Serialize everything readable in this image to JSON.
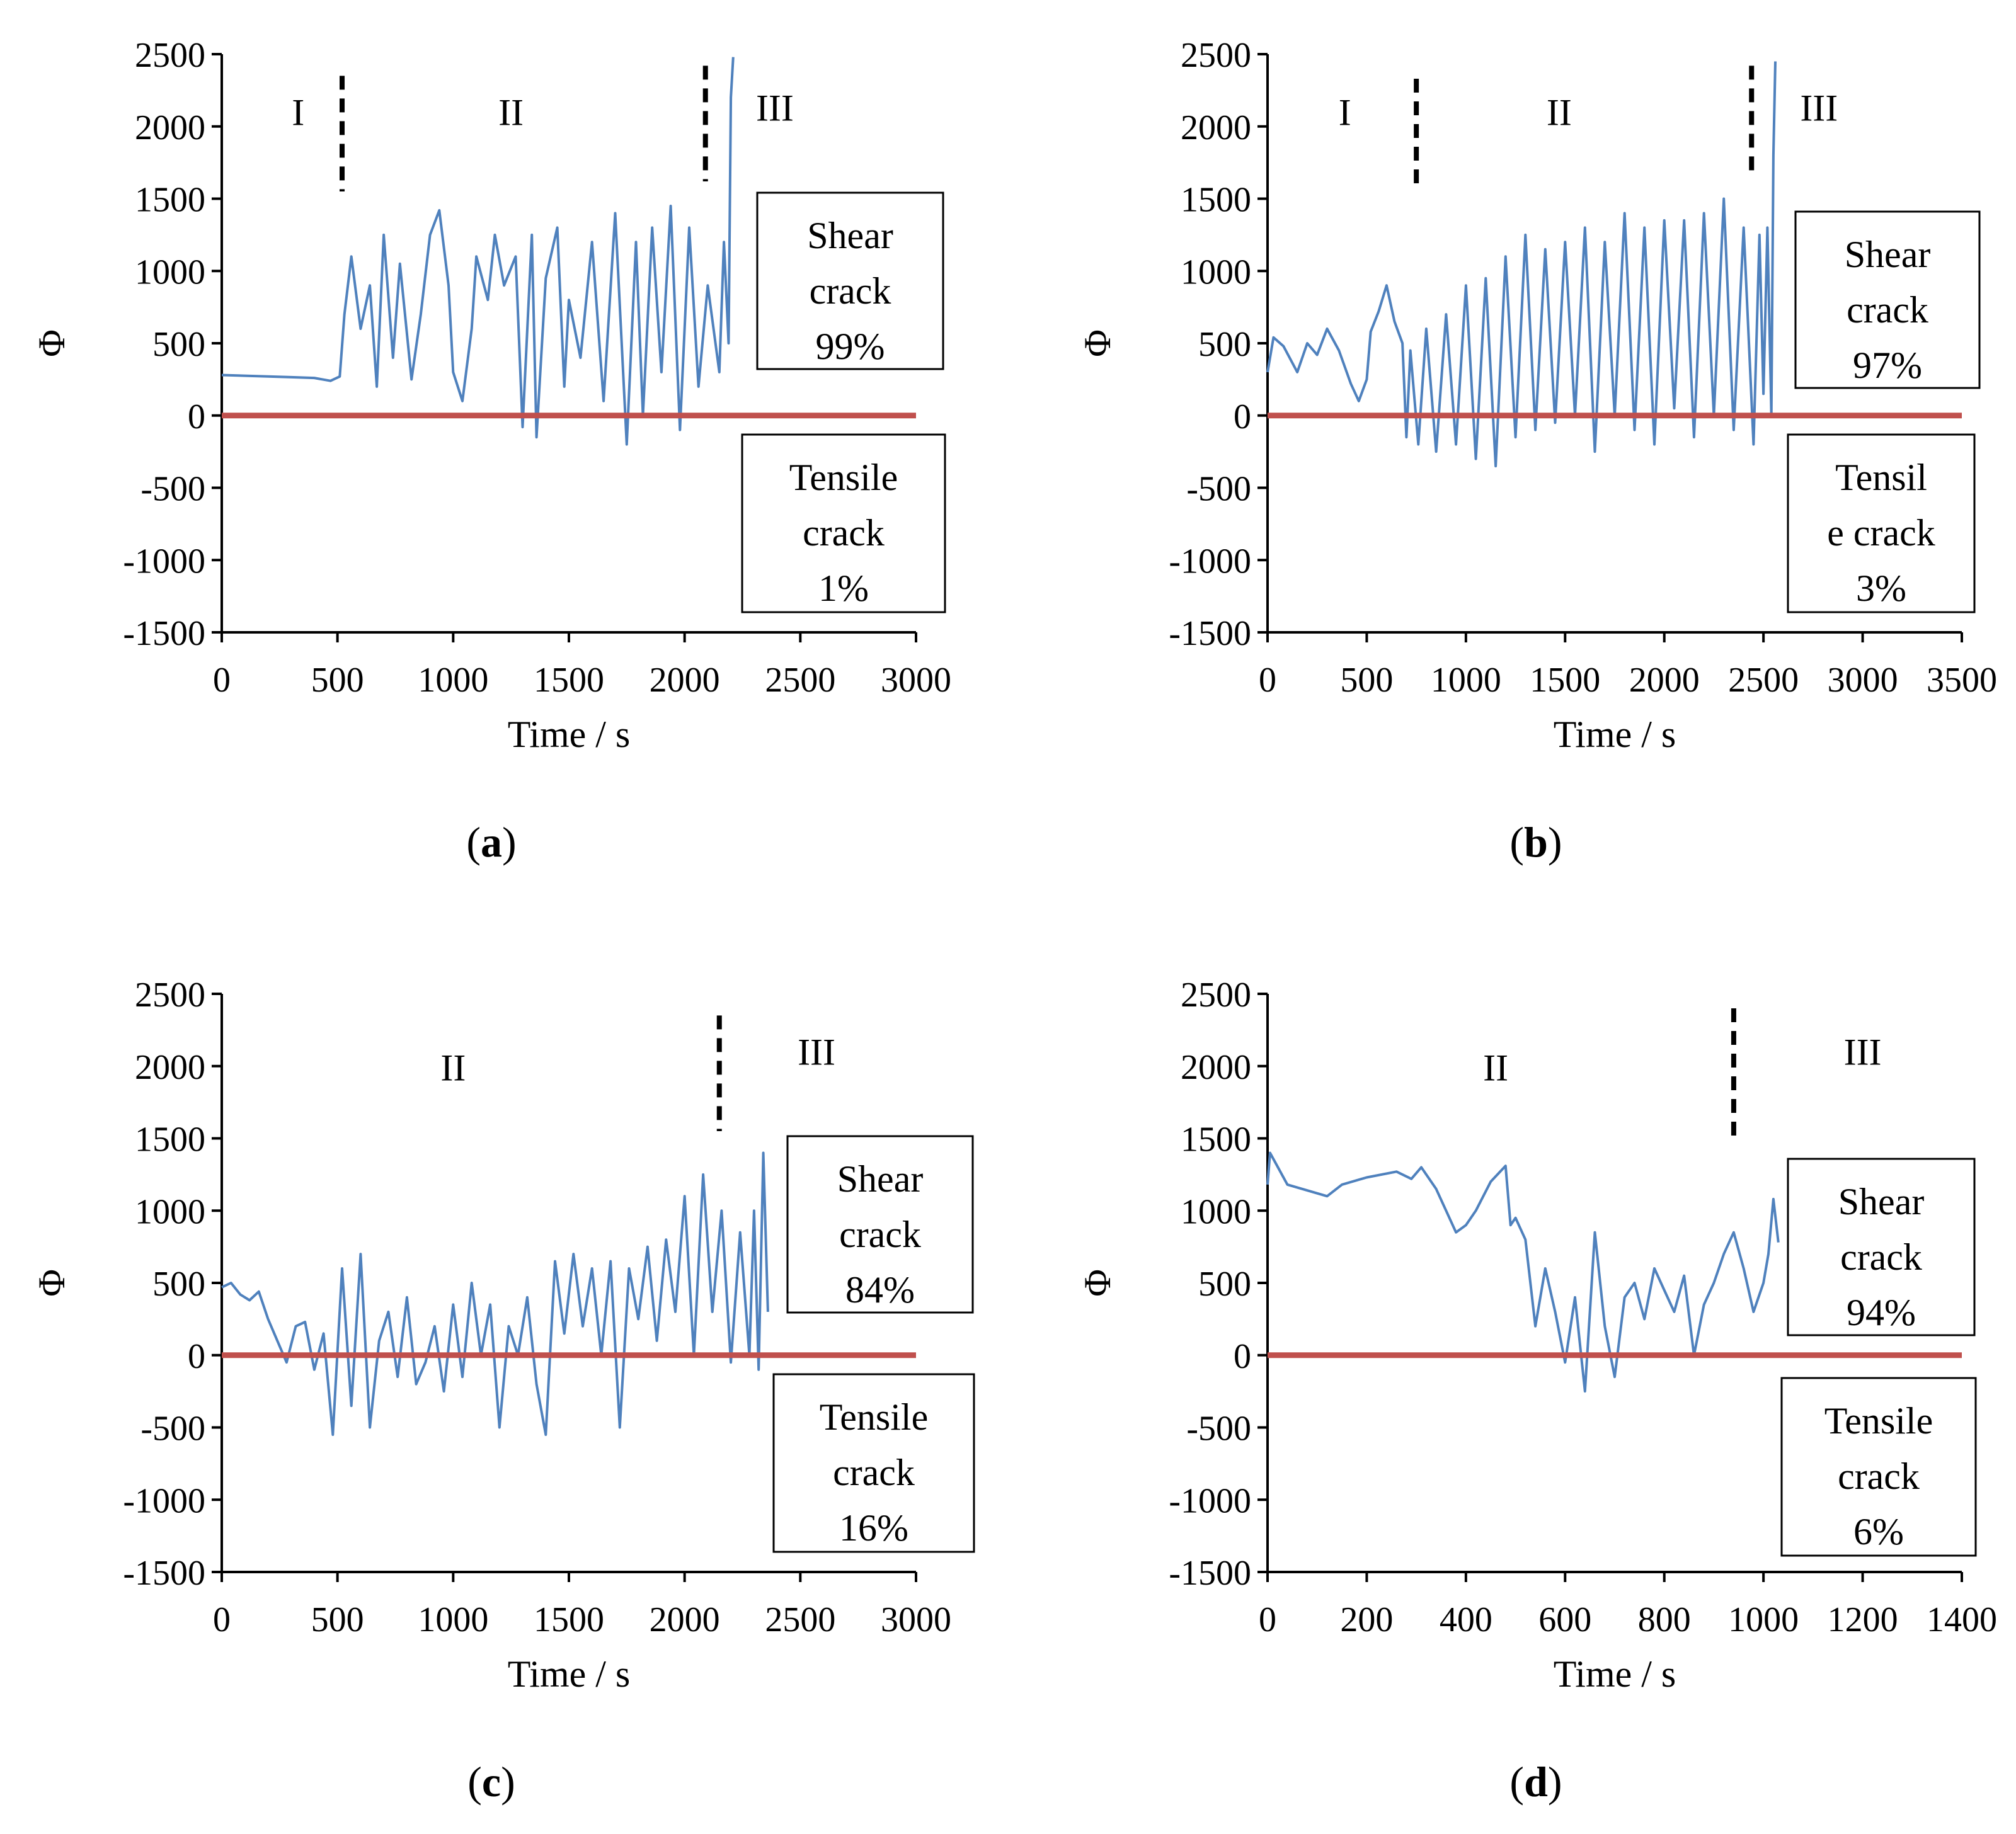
{
  "figure": {
    "panels": [
      {
        "id": "a",
        "caption_letter": "a",
        "stage_labels": [
          "I",
          "II",
          "III"
        ],
        "shear_box": {
          "line1": "Shear",
          "line2": "crack",
          "line3": "99%"
        },
        "tensile_box": {
          "line1": "Tensile",
          "line2": "crack",
          "line3": "1%"
        }
      },
      {
        "id": "b",
        "caption_letter": "b",
        "stage_labels": [
          "I",
          "II",
          "III"
        ],
        "shear_box": {
          "line1": "Shear",
          "line2": "crack",
          "line3": "97%"
        },
        "tensile_box": {
          "line1": "Tensil",
          "line2": "e crack",
          "line3": "3%"
        }
      },
      {
        "id": "c",
        "caption_letter": "c",
        "stage_labels": [
          "II",
          "III"
        ],
        "shear_box": {
          "line1": "Shear",
          "line2": "crack",
          "line3": "84%"
        },
        "tensile_box": {
          "line1": "Tensile",
          "line2": "crack",
          "line3": "16%"
        }
      },
      {
        "id": "d",
        "caption_letter": "d",
        "stage_labels": [
          "II",
          "III"
        ],
        "shear_box": {
          "line1": "Shear",
          "line2": "crack",
          "line3": "94%"
        },
        "tensile_box": {
          "line1": "Tensile",
          "line2": "crack",
          "line3": "6%"
        }
      }
    ]
  },
  "chart_data": [
    {
      "type": "line",
      "panel": "a",
      "xlabel": "Time / s",
      "ylabel": "Φ",
      "xlim": [
        0,
        3000
      ],
      "ylim": [
        -1500,
        2500
      ],
      "xticks": [
        0,
        500,
        1000,
        1500,
        2000,
        2500,
        3000
      ],
      "yticks": [
        -1500,
        -1000,
        -500,
        0,
        500,
        1000,
        1500,
        2000,
        2500
      ],
      "stage_boundaries": [
        {
          "x": 520,
          "y1": 1550,
          "y2": 2350
        },
        {
          "x": 2090,
          "y1": 1620,
          "y2": 2420
        }
      ],
      "stages": [
        {
          "label": "I",
          "x": 330,
          "y": 2010
        },
        {
          "label": "II",
          "x": 1250,
          "y": 2010
        },
        {
          "label": "III",
          "x": 2390,
          "y": 2040
        }
      ],
      "series": [
        {
          "name": "Φ",
          "color": "#4F81BD",
          "x": [
            0,
            100,
            200,
            300,
            400,
            470,
            510,
            530,
            560,
            600,
            640,
            670,
            700,
            740,
            770,
            820,
            860,
            900,
            940,
            980,
            1000,
            1040,
            1080,
            1100,
            1150,
            1180,
            1220,
            1270,
            1300,
            1340,
            1360,
            1400,
            1450,
            1480,
            1500,
            1550,
            1600,
            1650,
            1700,
            1750,
            1790,
            1820,
            1860,
            1900,
            1940,
            1980,
            2020,
            2060,
            2100,
            2150,
            2170,
            2190,
            2200,
            2210
          ],
          "y": [
            280,
            275,
            270,
            265,
            260,
            240,
            270,
            700,
            1100,
            600,
            900,
            200,
            1250,
            400,
            1050,
            250,
            700,
            1250,
            1420,
            900,
            300,
            100,
            600,
            1100,
            800,
            1250,
            900,
            1100,
            -80,
            1250,
            -150,
            950,
            1300,
            200,
            800,
            400,
            1200,
            100,
            1400,
            -200,
            1200,
            0,
            1300,
            300,
            1450,
            -100,
            1300,
            200,
            900,
            300,
            1200,
            500,
            2200,
            2480
          ]
        },
        {
          "name": "zero",
          "color": "#C0504D",
          "x": [
            0,
            3000
          ],
          "y": [
            0,
            0
          ]
        }
      ]
    },
    {
      "type": "line",
      "panel": "b",
      "xlabel": "Time / s",
      "ylabel": "Φ",
      "xlim": [
        0,
        3500
      ],
      "ylim": [
        -1500,
        2500
      ],
      "xticks": [
        0,
        500,
        1000,
        1500,
        2000,
        2500,
        3000,
        3500
      ],
      "yticks": [
        -1500,
        -1000,
        -500,
        0,
        500,
        1000,
        1500,
        2000,
        2500
      ],
      "stage_boundaries": [
        {
          "x": 750,
          "y1": 1580,
          "y2": 2330
        },
        {
          "x": 2440,
          "y1": 1650,
          "y2": 2420
        }
      ],
      "stages": [
        {
          "label": "I",
          "x": 390,
          "y": 2010
        },
        {
          "label": "II",
          "x": 1470,
          "y": 2010
        },
        {
          "label": "III",
          "x": 2780,
          "y": 2040
        }
      ],
      "series": [
        {
          "name": "Φ",
          "color": "#4F81BD",
          "x": [
            0,
            30,
            80,
            150,
            200,
            250,
            300,
            360,
            420,
            460,
            500,
            520,
            560,
            600,
            640,
            680,
            700,
            720,
            760,
            800,
            850,
            900,
            950,
            1000,
            1050,
            1100,
            1150,
            1200,
            1250,
            1300,
            1350,
            1400,
            1450,
            1500,
            1550,
            1600,
            1650,
            1700,
            1750,
            1800,
            1850,
            1900,
            1950,
            2000,
            2050,
            2100,
            2150,
            2200,
            2250,
            2300,
            2350,
            2400,
            2450,
            2480,
            2500,
            2520,
            2540,
            2550,
            2560
          ],
          "y": [
            300,
            540,
            480,
            300,
            500,
            420,
            600,
            450,
            220,
            100,
            250,
            580,
            720,
            900,
            650,
            500,
            -150,
            450,
            -200,
            600,
            -250,
            700,
            -200,
            900,
            -300,
            950,
            -350,
            1100,
            -150,
            1250,
            -100,
            1150,
            -50,
            1200,
            0,
            1300,
            -250,
            1200,
            0,
            1400,
            -100,
            1300,
            -200,
            1350,
            50,
            1350,
            -150,
            1400,
            0,
            1500,
            -100,
            1300,
            -200,
            1250,
            150,
            1300,
            0,
            1800,
            2450
          ]
        },
        {
          "name": "zero",
          "color": "#C0504D",
          "x": [
            0,
            3500
          ],
          "y": [
            0,
            0
          ]
        }
      ]
    },
    {
      "type": "line",
      "panel": "c",
      "xlabel": "Time / s",
      "ylabel": "Φ",
      "xlim": [
        0,
        3000
      ],
      "ylim": [
        -1500,
        2500
      ],
      "xticks": [
        0,
        500,
        1000,
        1500,
        2000,
        2500,
        3000
      ],
      "yticks": [
        -1500,
        -1000,
        -500,
        0,
        500,
        1000,
        1500,
        2000,
        2500
      ],
      "stage_boundaries": [
        {
          "x": 2150,
          "y1": 1550,
          "y2": 2350
        }
      ],
      "stages": [
        {
          "label": "II",
          "x": 1000,
          "y": 1900
        },
        {
          "label": "III",
          "x": 2570,
          "y": 2010
        }
      ],
      "series": [
        {
          "name": "Φ",
          "color": "#4F81BD",
          "x": [
            0,
            40,
            80,
            120,
            160,
            200,
            240,
            280,
            320,
            360,
            400,
            440,
            480,
            520,
            560,
            600,
            640,
            680,
            720,
            760,
            800,
            840,
            880,
            920,
            960,
            1000,
            1040,
            1080,
            1120,
            1160,
            1200,
            1240,
            1280,
            1320,
            1360,
            1400,
            1440,
            1480,
            1520,
            1560,
            1600,
            1640,
            1680,
            1720,
            1760,
            1800,
            1840,
            1880,
            1920,
            1960,
            2000,
            2040,
            2080,
            2120,
            2160,
            2200,
            2240,
            2280,
            2300,
            2320,
            2340,
            2360
          ],
          "y": [
            470,
            500,
            420,
            380,
            440,
            250,
            100,
            -50,
            200,
            230,
            -100,
            150,
            -550,
            600,
            -350,
            700,
            -500,
            100,
            300,
            -150,
            400,
            -200,
            -50,
            200,
            -250,
            350,
            -150,
            500,
            0,
            350,
            -500,
            200,
            0,
            400,
            -200,
            -550,
            650,
            150,
            700,
            200,
            600,
            0,
            650,
            -500,
            600,
            250,
            750,
            100,
            800,
            300,
            1100,
            0,
            1250,
            300,
            1000,
            -50,
            850,
            0,
            1000,
            -100,
            1400,
            300
          ]
        },
        {
          "name": "zero",
          "color": "#C0504D",
          "x": [
            0,
            3000
          ],
          "y": [
            0,
            0
          ]
        }
      ]
    },
    {
      "type": "line",
      "panel": "d",
      "xlabel": "Time / s",
      "ylabel": "Φ",
      "xlim": [
        0,
        1400
      ],
      "ylim": [
        -1500,
        2500
      ],
      "xticks": [
        0,
        200,
        400,
        600,
        800,
        1000,
        1200,
        1400
      ],
      "yticks": [
        -1500,
        -1000,
        -500,
        0,
        500,
        1000,
        1500,
        2000,
        2500
      ],
      "stage_boundaries": [
        {
          "x": 940,
          "y1": 1460,
          "y2": 2400
        }
      ],
      "stages": [
        {
          "label": "II",
          "x": 460,
          "y": 1900
        },
        {
          "label": "III",
          "x": 1200,
          "y": 2010
        }
      ],
      "series": [
        {
          "name": "Φ",
          "color": "#4F81BD",
          "x": [
            0,
            5,
            40,
            120,
            150,
            200,
            260,
            290,
            310,
            340,
            360,
            380,
            400,
            420,
            450,
            480,
            490,
            500,
            520,
            540,
            560,
            580,
            600,
            620,
            640,
            660,
            680,
            700,
            720,
            740,
            760,
            780,
            800,
            820,
            840,
            860,
            880,
            900,
            920,
            940,
            960,
            980,
            1000,
            1010,
            1020,
            1030
          ],
          "y": [
            1180,
            1400,
            1180,
            1100,
            1180,
            1230,
            1270,
            1220,
            1300,
            1150,
            1000,
            850,
            900,
            1000,
            1200,
            1310,
            900,
            950,
            800,
            200,
            600,
            300,
            -50,
            400,
            -250,
            850,
            200,
            -150,
            400,
            500,
            250,
            600,
            450,
            300,
            550,
            0,
            350,
            500,
            700,
            850,
            600,
            300,
            500,
            700,
            1080,
            780
          ]
        },
        {
          "name": "zero",
          "color": "#C0504D",
          "x": [
            0,
            1400
          ],
          "y": [
            0,
            0
          ]
        }
      ]
    }
  ]
}
